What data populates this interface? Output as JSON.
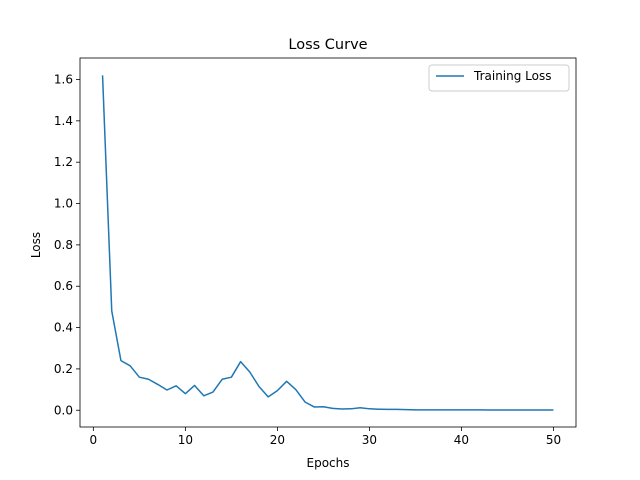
{
  "chart_data": {
    "type": "line",
    "title": "Loss Curve",
    "xlabel": "Epochs",
    "ylabel": "Loss",
    "xlim": [
      -1.45,
      52.45
    ],
    "ylim": [
      -0.081,
      1.704
    ],
    "xticks": [
      0,
      10,
      20,
      30,
      40,
      50
    ],
    "xtick_labels": [
      "0",
      "10",
      "20",
      "30",
      "40",
      "50"
    ],
    "yticks": [
      0.0,
      0.2,
      0.4,
      0.6,
      0.8,
      1.0,
      1.2,
      1.4,
      1.6
    ],
    "ytick_labels": [
      "0.0",
      "0.2",
      "0.4",
      "0.6",
      "0.8",
      "1.0",
      "1.2",
      "1.4",
      "1.6"
    ],
    "grid": false,
    "legend_position": "top-right",
    "series": [
      {
        "name": "Training Loss",
        "color": "#1f77b4",
        "x": [
          1,
          2,
          3,
          4,
          5,
          6,
          7,
          8,
          9,
          10,
          11,
          12,
          13,
          14,
          15,
          16,
          17,
          18,
          19,
          20,
          21,
          22,
          23,
          24,
          25,
          26,
          27,
          28,
          29,
          30,
          31,
          32,
          33,
          34,
          35,
          36,
          37,
          38,
          39,
          40,
          41,
          42,
          43,
          44,
          45,
          46,
          47,
          48,
          49,
          50
        ],
        "values": [
          1.62,
          0.48,
          0.24,
          0.215,
          0.16,
          0.15,
          0.125,
          0.098,
          0.118,
          0.08,
          0.12,
          0.07,
          0.088,
          0.15,
          0.16,
          0.235,
          0.185,
          0.115,
          0.065,
          0.095,
          0.14,
          0.1,
          0.04,
          0.016,
          0.017,
          0.009,
          0.006,
          0.007,
          0.012,
          0.007,
          0.005,
          0.004,
          0.004,
          0.003,
          0.002,
          0.002,
          0.002,
          0.002,
          0.002,
          0.002,
          0.002,
          0.002,
          0.001,
          0.001,
          0.001,
          0.001,
          0.001,
          0.001,
          0.001,
          0.001
        ]
      }
    ]
  }
}
